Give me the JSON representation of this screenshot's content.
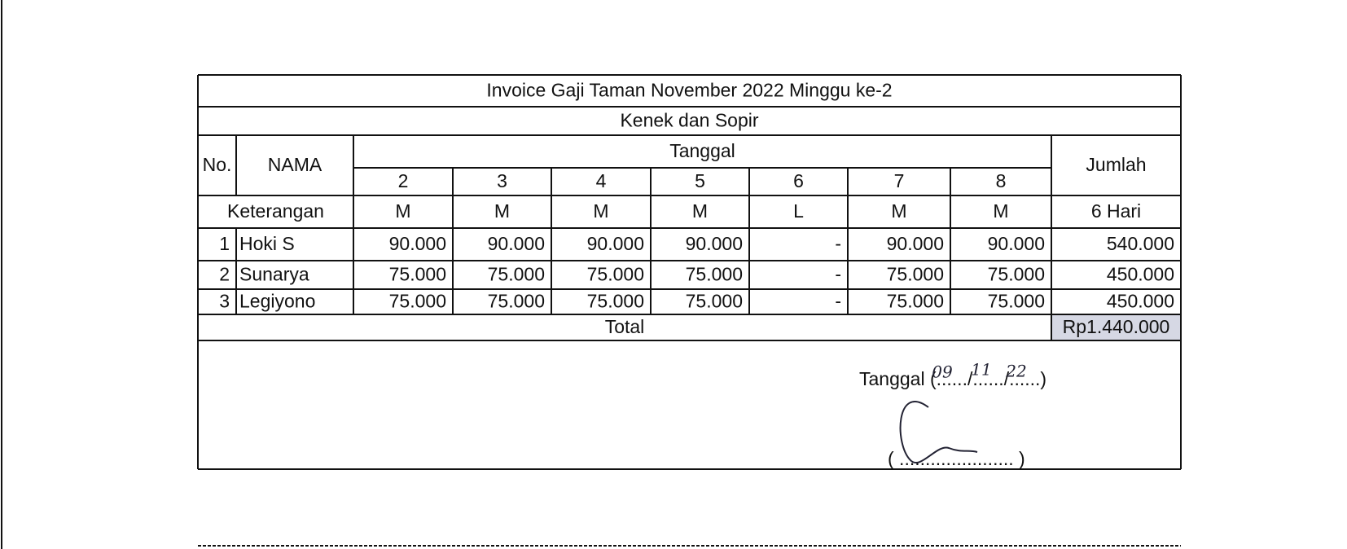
{
  "header": {
    "title": "Invoice Gaji Taman November 2022 Minggu ke-2",
    "subtitle": "Kenek dan Sopir"
  },
  "table": {
    "columns": {
      "no": "No.",
      "name": "NAMA",
      "date_group": "Tanggal",
      "dates": [
        "2",
        "3",
        "4",
        "5",
        "6",
        "7",
        "8"
      ],
      "total": "Jumlah"
    },
    "notes": {
      "label": "Keterangan",
      "values": [
        "M",
        "M",
        "M",
        "M",
        "L",
        "M",
        "M"
      ],
      "total": "6 Hari"
    },
    "rows": [
      [
        "1",
        "Hoki S",
        "90.000",
        "90.000",
        "90.000",
        "90.000",
        "-",
        "90.000",
        "90.000",
        "540.000"
      ],
      [
        "2",
        "Sunarya",
        "75.000",
        "75.000",
        "75.000",
        "75.000",
        "-",
        "75.000",
        "75.000",
        "450.000"
      ],
      [
        "3",
        "Legiyono",
        "75.000",
        "75.000",
        "75.000",
        "75.000",
        "-",
        "75.000",
        "75.000",
        "450.000"
      ]
    ],
    "total": {
      "label": "Total",
      "value": "Rp1.440.000"
    }
  },
  "signature": {
    "date_label": "Tanggal (....../....../......)",
    "date_handwritten": [
      "09",
      "11",
      "22"
    ],
    "name_line": "( ...................... )"
  }
}
